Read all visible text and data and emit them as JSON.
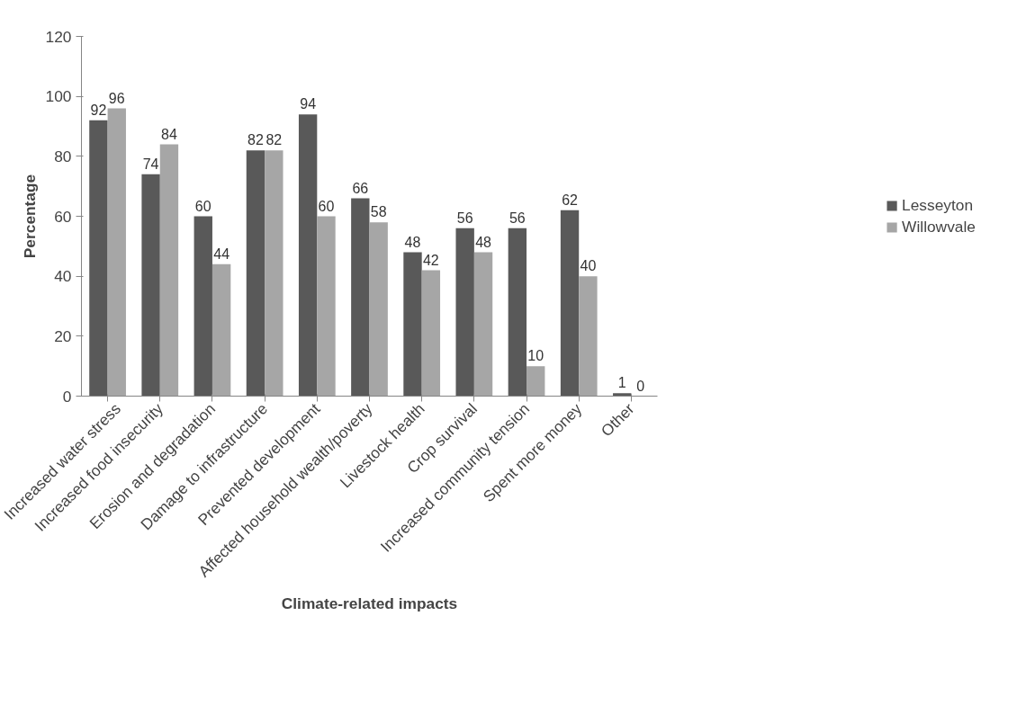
{
  "chart_data": {
    "type": "bar",
    "xlabel": "Climate-related impacts",
    "ylabel": "Percentage",
    "categories": [
      "Increased water stress",
      "Increased food insecurity",
      "Erosion and degradation",
      "Damage to infrastructure",
      "Prevented development",
      "Affected household wealth/poverty",
      "Livestock health",
      "Crop survival",
      "Increased community tension",
      "Spent more money",
      "Other"
    ],
    "series": [
      {
        "name": "Lesseyton",
        "color": "#595959",
        "values": [
          92,
          74,
          60,
          82,
          94,
          66,
          48,
          56,
          56,
          62,
          1
        ]
      },
      {
        "name": "Willowvale",
        "color": "#a6a6a6",
        "values": [
          96,
          84,
          44,
          82,
          60,
          58,
          42,
          48,
          10,
          40,
          0
        ]
      }
    ],
    "ylim": [
      0,
      120
    ],
    "yticks": [
      0,
      20,
      40,
      60,
      80,
      100,
      120
    ],
    "grid": false,
    "legend": "right",
    "data_labels": true
  }
}
